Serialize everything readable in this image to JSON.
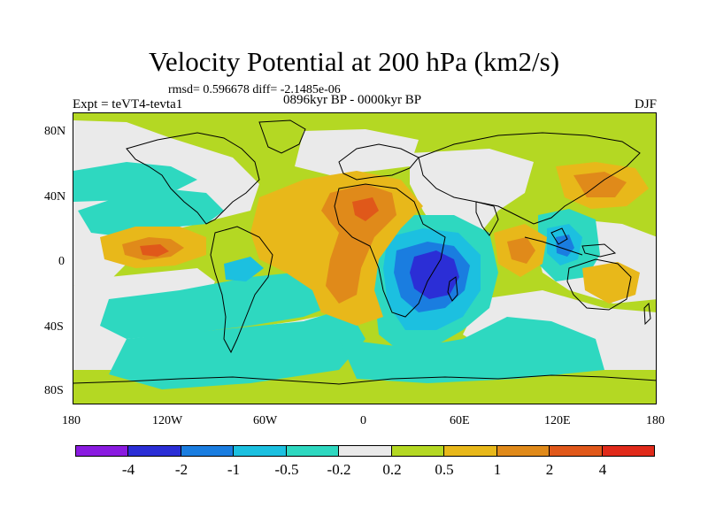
{
  "header": {
    "title": "Velocity Potential at 200 hPa (km2/s)",
    "stats": "rmsd= 0.596678 diff= -2.1485e-06",
    "experiment": "Expt = teVT4-tevta1",
    "period": "0896kyr BP - 0000kyr BP",
    "season": "DJF"
  },
  "map": {
    "x_ticks": [
      "180",
      "120W",
      "60W",
      "0",
      "60E",
      "120E",
      "180"
    ],
    "y_ticks": [
      "80N",
      "40N",
      "0",
      "40S",
      "80S"
    ]
  },
  "colorbar": {
    "colors": [
      "#8a1be0",
      "#2b2ed6",
      "#1a7de0",
      "#1cc0e0",
      "#2ed8c0",
      "#eaeaea",
      "#b4d823",
      "#e8b81a",
      "#e08a1a",
      "#e0581a",
      "#e02a1a"
    ],
    "labels": [
      "-4",
      "-2",
      "-1",
      "-0.5",
      "-0.2",
      "0.2",
      "0.5",
      "1",
      "2",
      "4"
    ]
  },
  "colors": {
    "neutral": "#eaeaea",
    "pos_weak": "#b4d823",
    "pos_mid": "#e8b81a",
    "pos_strong": "#e08a1a",
    "pos_max": "#e0581a",
    "neg_weak": "#2ed8c0",
    "neg_mid": "#1cc0e0",
    "neg_strong": "#1a7de0",
    "neg_max": "#2b2ed6"
  }
}
